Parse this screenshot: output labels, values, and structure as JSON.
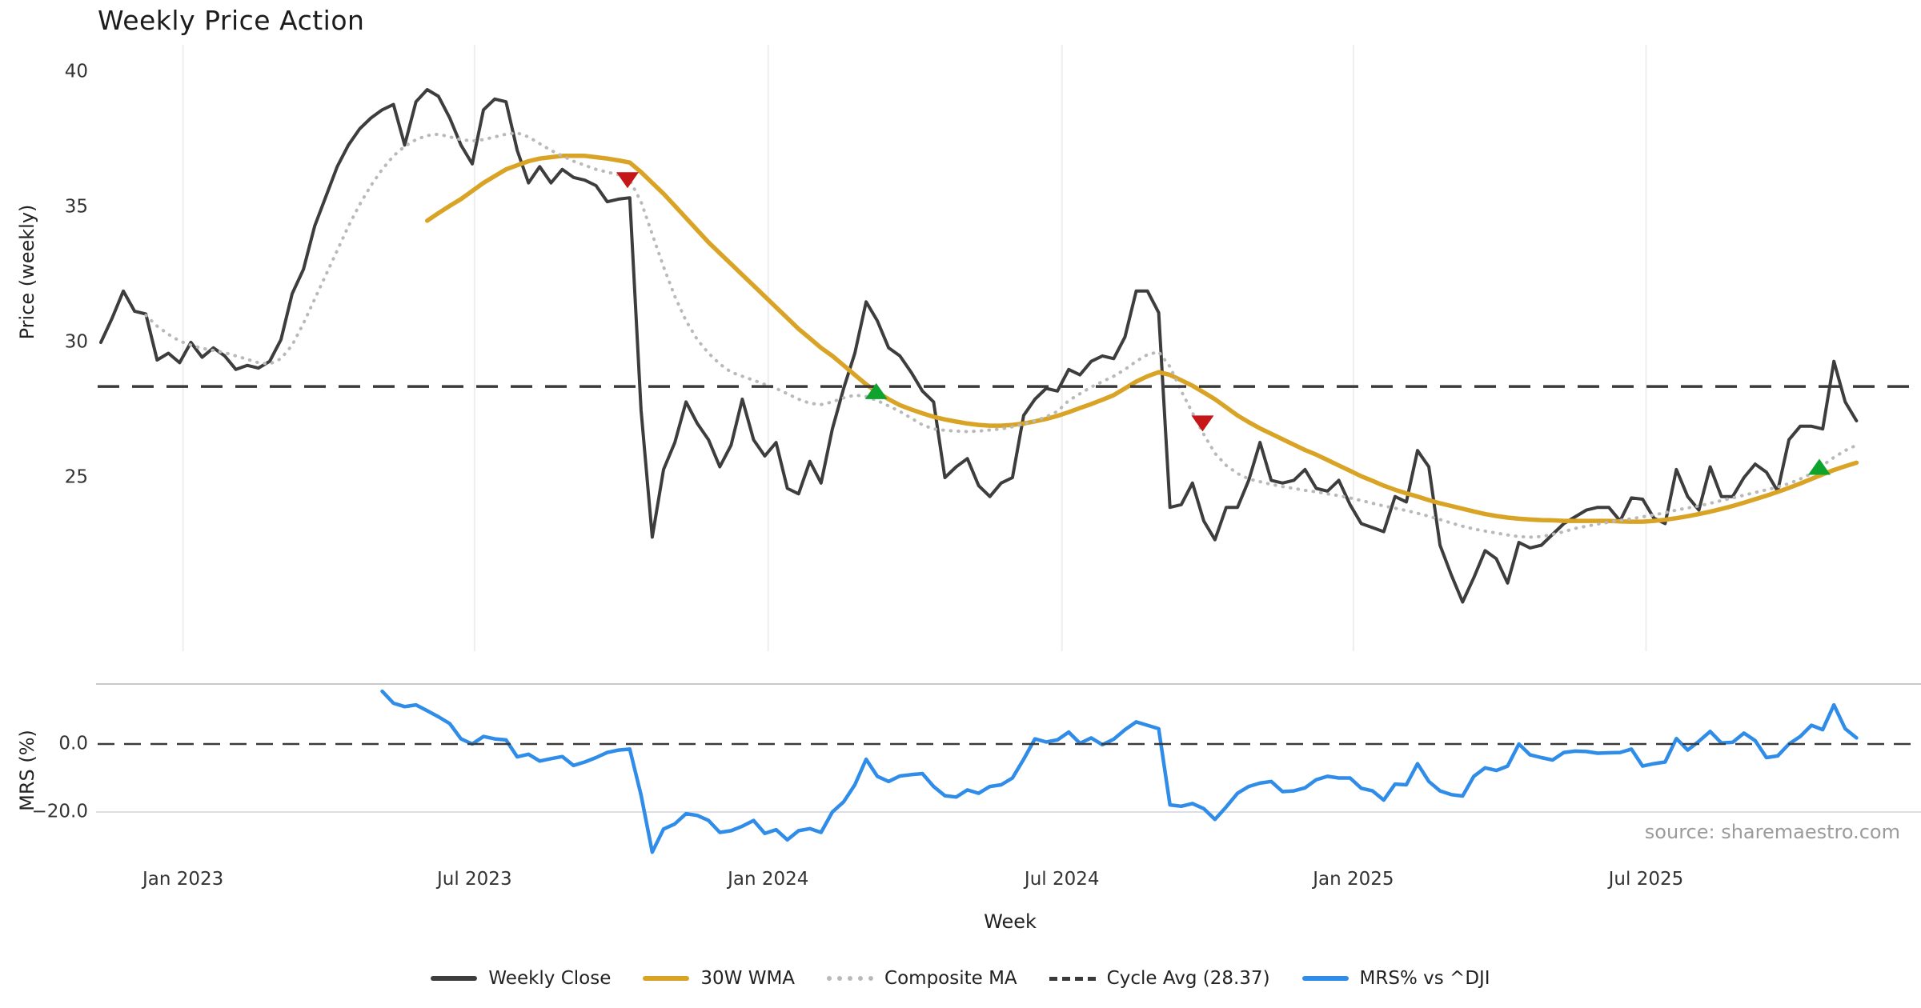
{
  "title": "Weekly Price Action",
  "source_note": "source: sharemaestro.com",
  "colors": {
    "weekly_close": "#3d3d3d",
    "wma30": "#d9a425",
    "composite_ma": "#b9b9b9",
    "cycle_avg": "#3a3a3a",
    "mrs": "#2f8ce8",
    "sell_marker": "#c51717",
    "buy_marker": "#0ea32c",
    "grid": "#ededf2",
    "subplot_border": "#c9c9c9",
    "minor_grid": "#dddde2",
    "source_text": "#9b9b9b"
  },
  "chart_data": {
    "type": "line",
    "title": "Weekly Price Action",
    "xlabel": "Week",
    "x_unit": "weekly index (0 = first plotted week, late 2022)",
    "panels": [
      {
        "name": "price",
        "ylabel": "Price (weekly)",
        "ytick_labels": [
          "40",
          "35",
          "30",
          "25"
        ],
        "ylim": [
          19.0,
          41.2
        ],
        "cycle_avg": 28.37
      },
      {
        "name": "mrs",
        "ylabel": "MRS (%)",
        "ytick_labels": [
          "0.0",
          "−20.0"
        ],
        "ylim": [
          -33.5,
          17.6
        ],
        "zero_line": 0.0,
        "minor_gridline": -20.0
      }
    ],
    "x_ticks": [
      {
        "label": "Jan 2023",
        "week": 7.3
      },
      {
        "label": "Jul 2023",
        "week": 33.2
      },
      {
        "label": "Jan 2024",
        "week": 59.3
      },
      {
        "label": "Jul 2024",
        "week": 85.4
      },
      {
        "label": "Jan 2025",
        "week": 111.3
      },
      {
        "label": "Jul 2025",
        "week": 137.3
      }
    ],
    "legend": [
      "Weekly Close",
      "30W WMA",
      "Composite MA",
      "Cycle Avg (28.37)",
      "MRS% vs ^DJI"
    ],
    "series": [
      {
        "name": "Weekly Close",
        "panel": "price",
        "color": "#3d3d3d",
        "width": 4,
        "dash": "",
        "start": 0,
        "values": [
          30.0,
          30.9,
          31.9,
          31.15,
          31.05,
          29.35,
          29.6,
          29.25,
          30.0,
          29.45,
          29.8,
          29.5,
          29.0,
          29.15,
          29.05,
          29.3,
          30.1,
          31.8,
          32.7,
          34.3,
          35.4,
          36.5,
          37.3,
          37.9,
          38.3,
          38.6,
          38.8,
          37.3,
          38.9,
          39.35,
          39.1,
          38.3,
          37.3,
          36.6,
          38.6,
          39.0,
          38.9,
          37.1,
          35.9,
          36.5,
          35.9,
          36.4,
          36.1,
          36.0,
          35.8,
          35.2,
          35.3,
          35.35,
          27.5,
          22.8,
          25.3,
          26.3,
          27.8,
          27.0,
          26.4,
          25.4,
          26.2,
          27.9,
          26.4,
          25.8,
          26.3,
          24.6,
          24.4,
          25.6,
          24.8,
          26.8,
          28.3,
          29.6,
          31.5,
          30.8,
          29.8,
          29.5,
          28.9,
          28.2,
          27.8,
          25.0,
          25.4,
          25.7,
          24.7,
          24.3,
          24.8,
          25.0,
          27.3,
          27.9,
          28.3,
          28.2,
          29.0,
          28.8,
          29.3,
          29.5,
          29.4,
          30.2,
          31.9,
          31.9,
          31.1,
          23.9,
          24.0,
          24.8,
          23.4,
          22.7,
          23.9,
          23.9,
          24.9,
          26.3,
          24.9,
          24.8,
          24.9,
          25.3,
          24.6,
          24.5,
          24.9,
          24.0,
          23.3,
          23.15,
          23.0,
          24.3,
          24.1,
          26.0,
          25.4,
          22.5,
          21.4,
          20.4,
          21.3,
          22.3,
          22.0,
          21.1,
          22.6,
          22.4,
          22.5,
          22.9,
          23.3,
          23.55,
          23.8,
          23.9,
          23.9,
          23.4,
          24.25,
          24.2,
          23.5,
          23.3,
          25.3,
          24.3,
          23.8,
          25.4,
          24.3,
          24.3,
          25.0,
          25.5,
          25.2,
          24.5,
          26.4,
          26.9,
          26.9,
          26.8,
          29.3,
          27.8,
          27.1
        ]
      },
      {
        "name": "30W WMA",
        "panel": "price",
        "color": "#d9a425",
        "width": 5.5,
        "dash": "",
        "start": 29,
        "values": [
          34.5,
          34.78,
          35.05,
          35.3,
          35.6,
          35.9,
          36.15,
          36.4,
          36.55,
          36.7,
          36.8,
          36.85,
          36.9,
          36.9,
          36.9,
          36.85,
          36.8,
          36.73,
          36.65,
          36.3,
          35.9,
          35.5,
          35.05,
          34.6,
          34.15,
          33.7,
          33.3,
          32.9,
          32.5,
          32.1,
          31.7,
          31.3,
          30.9,
          30.5,
          30.15,
          29.8,
          29.5,
          29.15,
          28.8,
          28.45,
          28.15,
          27.9,
          27.68,
          27.52,
          27.38,
          27.25,
          27.15,
          27.07,
          27.0,
          26.95,
          26.92,
          26.92,
          26.95,
          27.0,
          27.08,
          27.17,
          27.28,
          27.42,
          27.57,
          27.72,
          27.88,
          28.05,
          28.3,
          28.55,
          28.75,
          28.9,
          28.8,
          28.6,
          28.4,
          28.15,
          27.9,
          27.6,
          27.3,
          27.05,
          26.82,
          26.62,
          26.42,
          26.22,
          26.02,
          25.85,
          25.65,
          25.45,
          25.25,
          25.05,
          24.88,
          24.7,
          24.55,
          24.42,
          24.3,
          24.17,
          24.05,
          23.95,
          23.85,
          23.75,
          23.65,
          23.58,
          23.52,
          23.48,
          23.45,
          23.43,
          23.42,
          23.4,
          23.4,
          23.4,
          23.4,
          23.4,
          23.38,
          23.37,
          23.37,
          23.4,
          23.44,
          23.5,
          23.57,
          23.65,
          23.74,
          23.84,
          23.95,
          24.07,
          24.2,
          24.33,
          24.47,
          24.62,
          24.78,
          24.95,
          25.12,
          25.28,
          25.42,
          25.55
        ]
      },
      {
        "name": "Composite MA",
        "panel": "price",
        "color": "#b9b9b9",
        "width": 4,
        "dash": "0.6 9",
        "start": 4,
        "values": [
          31.0,
          30.6,
          30.3,
          30.05,
          29.9,
          29.78,
          29.7,
          29.62,
          29.5,
          29.38,
          29.25,
          29.2,
          29.4,
          29.9,
          30.7,
          31.6,
          32.5,
          33.4,
          34.3,
          35.1,
          35.8,
          36.4,
          36.9,
          37.25,
          37.5,
          37.65,
          37.7,
          37.6,
          37.5,
          37.45,
          37.5,
          37.6,
          37.7,
          37.75,
          37.6,
          37.35,
          37.1,
          36.9,
          36.7,
          36.55,
          36.4,
          36.3,
          36.2,
          36.0,
          35.2,
          34.0,
          32.8,
          31.7,
          30.8,
          30.1,
          29.6,
          29.2,
          28.9,
          28.75,
          28.6,
          28.45,
          28.3,
          28.1,
          27.9,
          27.75,
          27.7,
          27.8,
          27.95,
          28.05,
          28.0,
          27.85,
          27.65,
          27.45,
          27.2,
          26.95,
          26.8,
          26.75,
          26.72,
          26.7,
          26.72,
          26.76,
          26.8,
          26.88,
          26.98,
          27.1,
          27.25,
          27.45,
          27.85,
          28.1,
          28.35,
          28.55,
          28.75,
          29.0,
          29.3,
          29.55,
          29.65,
          29.1,
          28.2,
          27.4,
          26.6,
          25.9,
          25.45,
          25.15,
          24.95,
          24.85,
          24.75,
          24.67,
          24.6,
          24.53,
          24.47,
          24.4,
          24.33,
          24.25,
          24.15,
          24.05,
          23.95,
          23.87,
          23.78,
          23.68,
          23.57,
          23.45,
          23.32,
          23.2,
          23.1,
          23.02,
          22.95,
          22.88,
          22.82,
          22.8,
          22.82,
          22.9,
          23.0,
          23.12,
          23.2,
          23.28,
          23.35,
          23.42,
          23.48,
          23.55,
          23.62,
          23.7,
          23.8,
          23.88,
          23.95,
          24.05,
          24.15,
          24.25,
          24.35,
          24.45,
          24.55,
          24.65,
          24.78,
          24.95,
          25.15,
          25.45,
          25.75,
          26.0,
          26.2
        ]
      },
      {
        "name": "MRS% vs ^DJI",
        "panel": "mrs",
        "color": "#2f8ce8",
        "width": 4.5,
        "dash": "",
        "start": 25,
        "values": [
          15.5,
          12.0,
          11.0,
          11.5,
          9.8,
          8.0,
          6.0,
          1.5,
          0.0,
          2.2,
          1.5,
          1.2,
          -3.8,
          -3.0,
          -5.0,
          -4.3,
          -3.7,
          -6.3,
          -5.3,
          -4.0,
          -2.5,
          -1.8,
          -1.5,
          -15.0,
          -31.8,
          -25.0,
          -23.5,
          -20.5,
          -21.0,
          -22.5,
          -26.0,
          -25.5,
          -24.2,
          -22.5,
          -26.3,
          -25.2,
          -28.2,
          -25.5,
          -24.9,
          -26.0,
          -20.0,
          -17.0,
          -12.0,
          -4.5,
          -9.5,
          -11.0,
          -9.4,
          -9.0,
          -8.7,
          -12.5,
          -15.2,
          -15.6,
          -13.5,
          -14.5,
          -12.5,
          -12.0,
          -10.0,
          -4.5,
          1.5,
          0.6,
          1.2,
          3.5,
          0.2,
          1.8,
          -0.2,
          1.4,
          4.2,
          6.5,
          5.5,
          4.5,
          -17.9,
          -18.3,
          -17.5,
          -19.0,
          -22.2,
          -18.5,
          -14.5,
          -12.5,
          -11.5,
          -11.0,
          -14.0,
          -13.8,
          -12.9,
          -10.5,
          -9.5,
          -10.0,
          -10.0,
          -13.0,
          -13.8,
          -16.5,
          -11.8,
          -12.0,
          -5.8,
          -11.0,
          -13.8,
          -14.9,
          -15.3,
          -9.5,
          -7.0,
          -7.8,
          -6.5,
          0.0,
          -3.2,
          -4.0,
          -4.7,
          -2.5,
          -2.1,
          -2.2,
          -2.7,
          -2.6,
          -2.5,
          -1.5,
          -6.5,
          -5.8,
          -5.3,
          1.6,
          -1.8,
          0.8,
          3.7,
          0.3,
          0.5,
          3.2,
          1.0,
          -4.0,
          -3.5,
          0.0,
          2.2,
          5.5,
          4.2,
          11.5,
          4.5,
          1.8
        ]
      }
    ],
    "markers": {
      "sell": [
        {
          "week": 46.8,
          "value": 36.0
        },
        {
          "week": 97.9,
          "value": 27.0
        }
      ],
      "buy": [
        {
          "week": 68.9,
          "value": 28.2
        },
        {
          "week": 152.7,
          "value": 25.4
        }
      ]
    }
  }
}
